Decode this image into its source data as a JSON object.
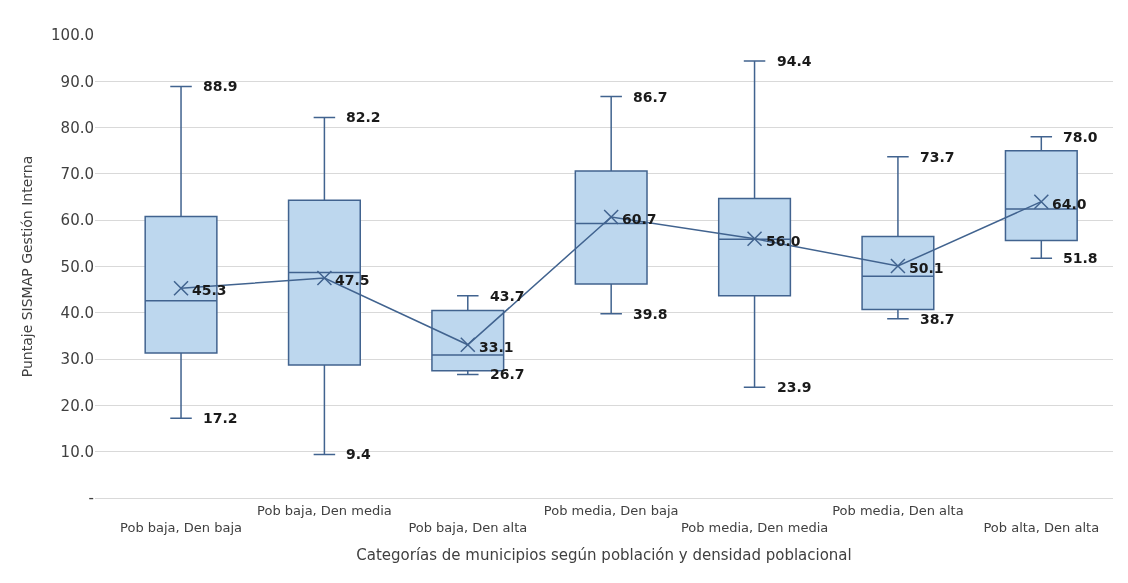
{
  "chart_data": {
    "type": "box",
    "xlabel": "Categorías de municipios según población y densidad poblacional",
    "ylabel": "Puntaje SISMAP Gestión Interna",
    "categories": [
      "Pob baja, Den baja",
      "Pob baja, Den media",
      "Pob baja, Den alta",
      "Pob media, Den baja",
      "Pob media, Den media",
      "Pob media, Den alta",
      "Pob alta, Den alta"
    ],
    "color": "#bdd7ee",
    "boxes": [
      {
        "low": 17.2,
        "q1": 31.3,
        "median": 42.6,
        "q3": 60.8,
        "high": 88.9
      },
      {
        "low": 9.4,
        "q1": 28.7,
        "median": 48.7,
        "q3": 64.3,
        "high": 82.2
      },
      {
        "low": 26.7,
        "q1": 27.5,
        "median": 30.9,
        "q3": 40.5,
        "high": 43.7
      },
      {
        "low": 39.8,
        "q1": 46.2,
        "median": 59.3,
        "q3": 70.6,
        "high": 86.7
      },
      {
        "low": 23.9,
        "q1": 43.7,
        "median": 55.9,
        "q3": 64.7,
        "high": 94.4
      },
      {
        "low": 38.7,
        "q1": 40.7,
        "median": 47.9,
        "q3": 56.5,
        "high": 73.7
      },
      {
        "low": 51.8,
        "q1": 55.6,
        "median": 62.4,
        "q3": 75.0,
        "high": 78.0
      }
    ],
    "series": [
      {
        "type": "line",
        "color": "#41638f",
        "values": [
          45.3,
          47.5,
          33.1,
          60.7,
          56.0,
          50.1,
          64.0
        ]
      }
    ],
    "annotations": [
      {
        "text": "88.9",
        "x": "Pob baja, Den baja",
        "y": 88.9
      },
      {
        "text": "45.3",
        "x": "Pob baja, Den baja",
        "y": 45.3
      },
      {
        "text": "17.2",
        "x": "Pob baja, Den baja",
        "y": 17.2
      },
      {
        "text": "82.2",
        "x": "Pob baja, Den media",
        "y": 82.2
      },
      {
        "text": "47.5",
        "x": "Pob baja, Den media",
        "y": 47.5
      },
      {
        "text": "9.4",
        "x": "Pob baja, Den media",
        "y": 9.4
      },
      {
        "text": "43.7",
        "x": "Pob baja, Den alta",
        "y": 43.7
      },
      {
        "text": "33.1",
        "x": "Pob baja, Den alta",
        "y": 33.1
      },
      {
        "text": "26.7",
        "x": "Pob baja, Den alta",
        "y": 26.7
      },
      {
        "text": "86.7",
        "x": "Pob media, Den baja",
        "y": 86.7
      },
      {
        "text": "60.7",
        "x": "Pob media, Den baja",
        "y": 60.7
      },
      {
        "text": "39.8",
        "x": "Pob media, Den baja",
        "y": 39.8
      },
      {
        "text": "94.4",
        "x": "Pob media, Den media",
        "y": 94.4
      },
      {
        "text": "56.0",
        "x": "Pob media, Den media",
        "y": 56.0
      },
      {
        "text": "23.9",
        "x": "Pob media, Den media",
        "y": 23.9
      },
      {
        "text": "73.7",
        "x": "Pob media, Den alta",
        "y": 73.7
      },
      {
        "text": "50.1",
        "x": "Pob media, Den alta",
        "y": 50.1
      },
      {
        "text": "38.7",
        "x": "Pob media, Den alta",
        "y": 38.7
      },
      {
        "text": "78.0",
        "x": "Pob alta, Den alta",
        "y": 78.0
      },
      {
        "text": "64.0",
        "x": "Pob alta, Den alta",
        "y": 64.0
      },
      {
        "text": "51.8",
        "x": "Pob alta, Den alta",
        "y": 51.8
      }
    ],
    "ylim": [
      0,
      100
    ],
    "yticks": [
      {
        "value": 0,
        "label": "-"
      },
      {
        "value": 10,
        "label": "10.0"
      },
      {
        "value": 20,
        "label": "20.0"
      },
      {
        "value": 30,
        "label": "30.0"
      },
      {
        "value": 40,
        "label": "40.0"
      },
      {
        "value": 50,
        "label": "50.0"
      },
      {
        "value": 60,
        "label": "60.0"
      },
      {
        "value": 70,
        "label": "70.0"
      },
      {
        "value": 80,
        "label": "80.0"
      },
      {
        "value": 90,
        "label": "90.0"
      },
      {
        "value": 100,
        "label": "100.0"
      }
    ],
    "grid": "y",
    "marker": "cross"
  }
}
